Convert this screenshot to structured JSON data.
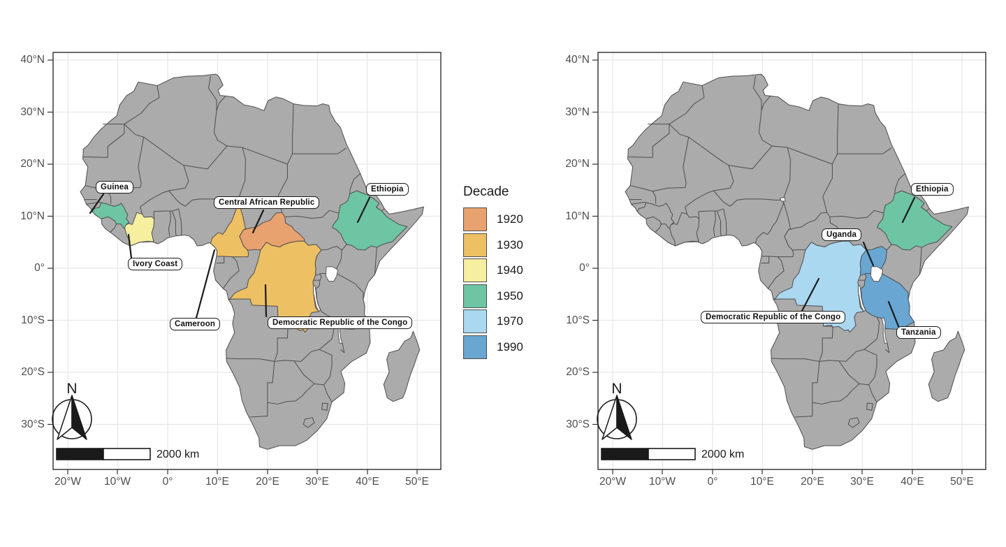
{
  "legend": {
    "title": "Decade",
    "entries": [
      {
        "label": "1920",
        "color": "#E8A26F"
      },
      {
        "label": "1930",
        "color": "#EDC063"
      },
      {
        "label": "1940",
        "color": "#F6EF9F"
      },
      {
        "label": "1950",
        "color": "#6EC5A3"
      },
      {
        "label": "1970",
        "color": "#AAD8F1"
      },
      {
        "label": "1990",
        "color": "#69A6D2"
      }
    ]
  },
  "axes": {
    "x_ticks": [
      "20°W",
      "10°W",
      "0°",
      "10°E",
      "20°E",
      "30°E",
      "40°E",
      "50°E"
    ],
    "y_ticks": [
      "40°N",
      "30°N",
      "20°N",
      "10°N",
      "0°",
      "10°S",
      "20°S",
      "30°S"
    ]
  },
  "panels": [
    {
      "id": "left",
      "north_label": "N",
      "scalebar_label": "2000 km",
      "annotations": [
        {
          "id": "guinea",
          "label": "Guinea"
        },
        {
          "id": "ivory_coast",
          "label": "Ivory Coast"
        },
        {
          "id": "central_african_republic",
          "label": "Central African Republic"
        },
        {
          "id": "cameroon",
          "label": "Cameroon"
        },
        {
          "id": "dr_congo",
          "label": "Democratic Republic of the Congo"
        },
        {
          "id": "ethiopia",
          "label": "Ethiopia"
        }
      ],
      "highlights": {
        "guinea": "1950",
        "ivory_coast": "1940",
        "cameroon": "1930",
        "central_african_republic": "1920",
        "dr_congo": "1930",
        "ethiopia": "1950"
      }
    },
    {
      "id": "right",
      "north_label": "N",
      "scalebar_label": "2000 km",
      "annotations": [
        {
          "id": "ethiopia",
          "label": "Ethiopia"
        },
        {
          "id": "uganda",
          "label": "Uganda"
        },
        {
          "id": "dr_congo",
          "label": "Democratic Republic of the Congo"
        },
        {
          "id": "tanzania",
          "label": "Tanzania"
        }
      ],
      "highlights": {
        "ethiopia": "1950",
        "uganda": "1990",
        "dr_congo": "1970",
        "tanzania": "1990"
      }
    }
  ],
  "colors": {
    "land": "#ABABAB",
    "border": "#4D4D4D",
    "grid": "#E7E7E7",
    "panel_border": "#2E2E2E",
    "axis_text": "#4D4D4D",
    "water": "#FFFFFF",
    "annotation_line": "#1A1A1A"
  }
}
